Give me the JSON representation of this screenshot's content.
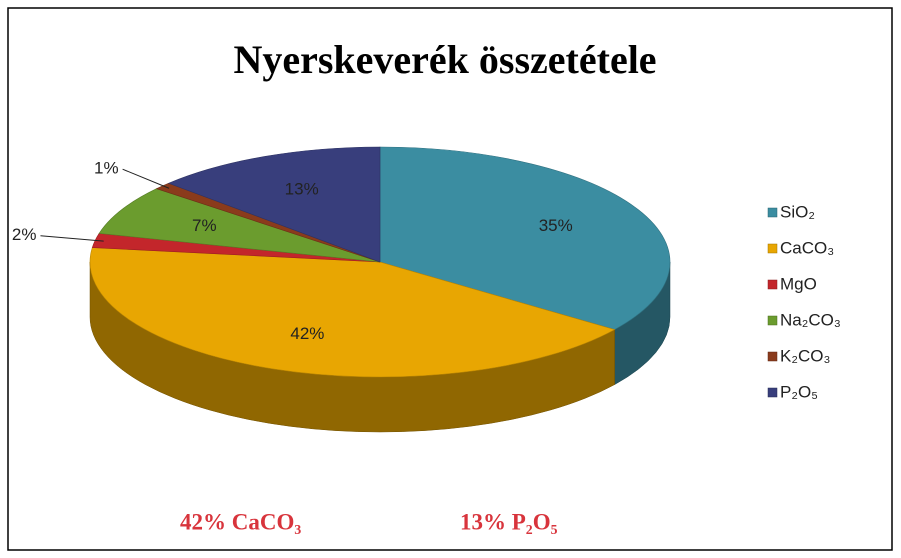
{
  "chart_data": {
    "type": "pie",
    "title": "Nyerskeverék összetétele",
    "categories": [
      "SiO₂",
      "CaCO₃",
      "MgO",
      "Na₂CO₃",
      "K₂CO₃",
      "P₂O₅"
    ],
    "values": [
      35,
      42,
      2,
      7,
      1,
      13
    ],
    "value_labels": [
      "35%",
      "42%",
      "2%",
      "7%",
      "1%",
      "13%"
    ],
    "colors": [
      "#3b8da1",
      "#e8a602",
      "#c3262b",
      "#6b9c2e",
      "#8a3b1c",
      "#383e7c"
    ],
    "legend": "right",
    "annotations": [
      "42%  CaCO₃",
      "13% P₂O₅"
    ]
  }
}
